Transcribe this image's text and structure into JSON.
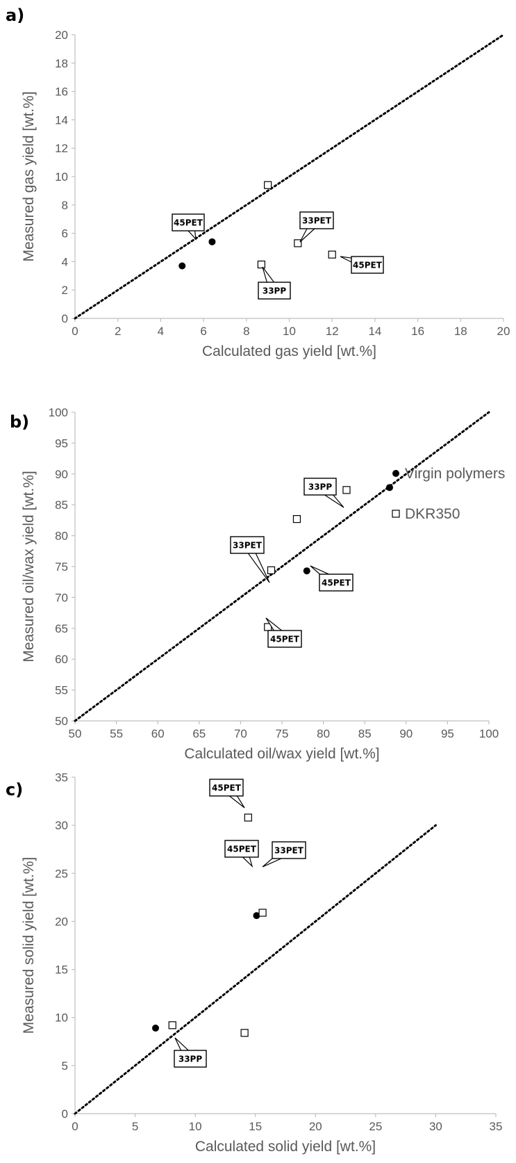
{
  "chart_data": [
    {
      "type": "scatter",
      "panel_label": "a)",
      "xlabel": "Calculated gas yield [wt.%]",
      "ylabel": "Measured gas yield [wt.%]",
      "xlim": [
        0,
        20
      ],
      "ylim": [
        0,
        20
      ],
      "xticks": [
        "0",
        "2",
        "4",
        "6",
        "8",
        "10",
        "12",
        "14",
        "16",
        "18",
        "20"
      ],
      "yticks": [
        "0",
        "2",
        "4",
        "6",
        "8",
        "10",
        "12",
        "14",
        "16",
        "18",
        "20"
      ],
      "parity_line": [
        [
          0,
          0
        ],
        [
          20,
          20
        ]
      ],
      "series": [
        {
          "name": "Virgin polymers",
          "marker": "filled-circle",
          "points": [
            [
              5.0,
              3.7
            ],
            [
              6.4,
              5.4
            ]
          ]
        },
        {
          "name": "DKR350",
          "marker": "open-square",
          "points": [
            [
              9.0,
              9.4
            ],
            [
              10.4,
              5.3
            ],
            [
              8.7,
              3.8
            ],
            [
              12.0,
              4.5
            ]
          ]
        }
      ],
      "annotations": [
        {
          "text": "45PET",
          "x": 6.4,
          "y": 5.4
        },
        {
          "text": "33PET",
          "x": 10.4,
          "y": 5.3
        },
        {
          "text": "33PP",
          "x": 8.7,
          "y": 3.8
        },
        {
          "text": "45PET",
          "x": 12.0,
          "y": 4.5
        }
      ]
    },
    {
      "type": "scatter",
      "panel_label": "b)",
      "xlabel": "Calculated oil/wax yield [wt.%]",
      "ylabel": "Measured oil/wax yield [wt.%]",
      "xlim": [
        50,
        100
      ],
      "ylim": [
        50,
        100
      ],
      "xticks": [
        "50",
        "55",
        "60",
        "65",
        "70",
        "75",
        "80",
        "85",
        "90",
        "95",
        "100"
      ],
      "yticks": [
        "50",
        "55",
        "60",
        "65",
        "70",
        "75",
        "80",
        "85",
        "90",
        "95",
        "100"
      ],
      "parity_line": [
        [
          50,
          50
        ],
        [
          100,
          100
        ]
      ],
      "series": [
        {
          "name": "Virgin polymers",
          "marker": "filled-circle",
          "points": [
            [
              88.0,
              87.8
            ],
            [
              78.0,
              74.3
            ]
          ]
        },
        {
          "name": "DKR350",
          "marker": "open-square",
          "points": [
            [
              82.8,
              87.4
            ],
            [
              76.8,
              82.7
            ],
            [
              73.7,
              74.4
            ],
            [
              73.3,
              65.2
            ]
          ]
        }
      ],
      "annotations": [
        {
          "text": "33PP",
          "x": 82.8,
          "y": 87.4
        },
        {
          "text": "33PET",
          "x": 73.7,
          "y": 74.4
        },
        {
          "text": "45PET",
          "x": 78.0,
          "y": 74.3
        },
        {
          "text": "45PET",
          "x": 73.3,
          "y": 65.2
        }
      ],
      "legend": {
        "position": "right",
        "entries": [
          {
            "label": "Virgin polymers",
            "marker": "filled-circle"
          },
          {
            "label": "DKR350",
            "marker": "open-square"
          }
        ]
      }
    },
    {
      "type": "scatter",
      "panel_label": "c)",
      "xlabel": "Calculated solid yield [wt.%]",
      "ylabel": "Measured solid yield [wt.%]",
      "xlim": [
        0,
        35
      ],
      "ylim": [
        0,
        35
      ],
      "xticks": [
        "0",
        "5",
        "10",
        "15",
        "20",
        "25",
        "30",
        "35"
      ],
      "yticks": [
        "0",
        "5",
        "10",
        "15",
        "20",
        "25",
        "30",
        "35"
      ],
      "parity_line": [
        [
          0,
          0
        ],
        [
          30,
          30
        ]
      ],
      "series": [
        {
          "name": "Virgin polymers",
          "marker": "filled-circle",
          "points": [
            [
              6.7,
              8.9
            ],
            [
              15.1,
              20.6
            ]
          ]
        },
        {
          "name": "DKR350",
          "marker": "open-square",
          "points": [
            [
              14.4,
              30.8
            ],
            [
              15.6,
              20.9
            ],
            [
              8.1,
              9.2
            ],
            [
              14.1,
              8.4
            ]
          ]
        }
      ],
      "annotations": [
        {
          "text": "45PET",
          "x": 14.4,
          "y": 30.8
        },
        {
          "text": "45PET",
          "x": 15.1,
          "y": 20.6
        },
        {
          "text": "33PET",
          "x": 15.6,
          "y": 20.9
        },
        {
          "text": "33PP",
          "x": 8.1,
          "y": 9.2
        }
      ]
    }
  ],
  "colors": {
    "axis": "#bfbfbf",
    "text": "#595959",
    "marker": "#000000"
  }
}
